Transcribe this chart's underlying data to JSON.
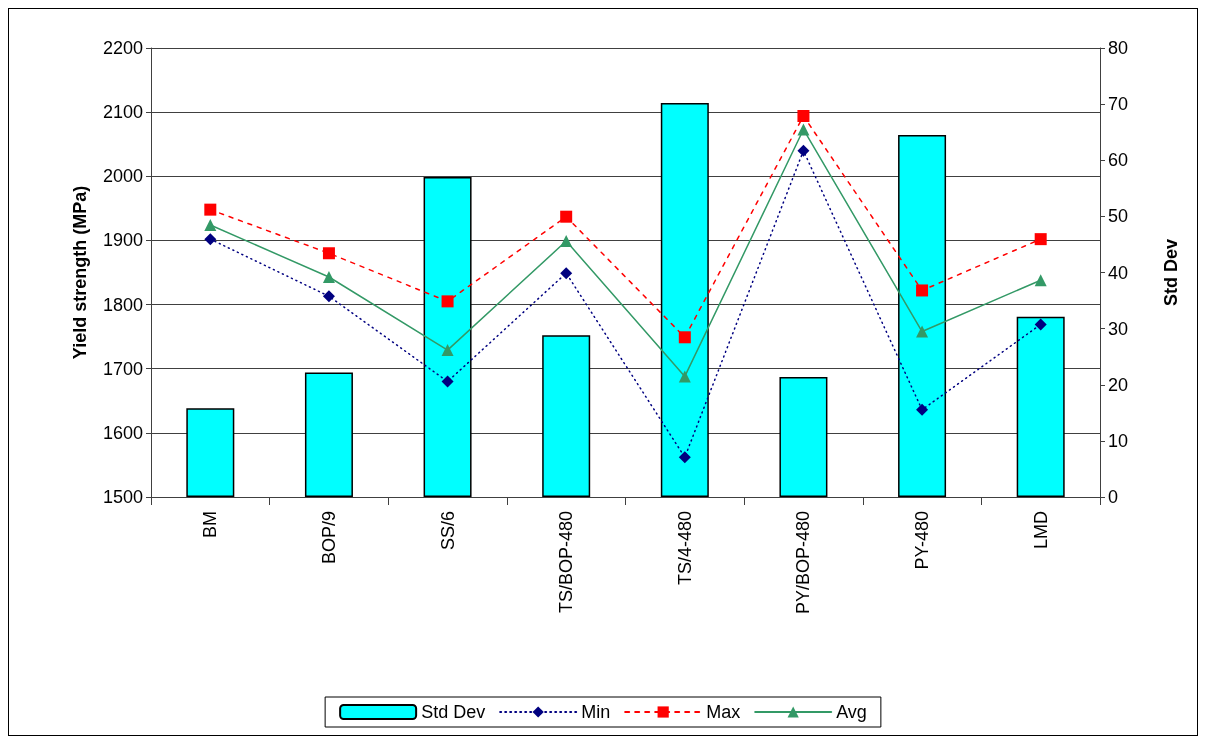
{
  "chart_data": {
    "type": "line",
    "categories": [
      "BM",
      "BOP/9",
      "SS/6",
      "TS/BOP-480",
      "TS/4-480",
      "PY/BOP-480",
      "PY-480",
      "LMD"
    ],
    "ylabel": "Yield strength (MPa)",
    "y2label": "Std Dev",
    "ylim": [
      1500,
      2200
    ],
    "yticks": [
      1500,
      1600,
      1700,
      1800,
      1900,
      2000,
      2100,
      2200
    ],
    "y2lim": [
      0,
      80
    ],
    "y2ticks": [
      0,
      10,
      20,
      30,
      40,
      50,
      60,
      70,
      80
    ],
    "grid": "y",
    "legend": "bottom",
    "series": [
      {
        "name": "Std Dev",
        "type": "bar",
        "axis": "y2",
        "color": "#00ffff",
        "values": [
          15.8,
          22.2,
          57,
          28.8,
          70.2,
          21.4,
          64.5,
          32.1
        ]
      },
      {
        "name": "Min",
        "color": "#000080",
        "marker": "diamond",
        "line_style": "dotted",
        "values": [
          1902,
          1813,
          1680,
          1849,
          1562,
          2040,
          1636,
          1769
        ]
      },
      {
        "name": "Max",
        "color": "#ff0000",
        "marker": "square",
        "line_style": "dashed",
        "values": [
          1948,
          1880,
          1805,
          1937,
          1749,
          2094,
          1822,
          1902
        ]
      },
      {
        "name": "Avg",
        "color": "#339966",
        "marker": "triangle",
        "line_style": "solid",
        "values": [
          1924,
          1843,
          1729,
          1899,
          1688,
          2073,
          1758,
          1838
        ]
      }
    ]
  }
}
